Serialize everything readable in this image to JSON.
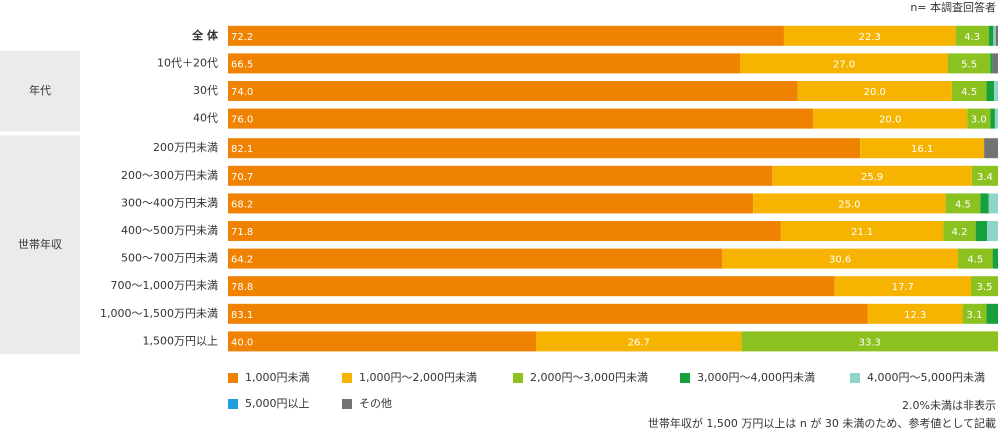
{
  "chart_data": {
    "type": "stacked-bar-horizontal",
    "note_top": "n= 本調査回答者",
    "notes": [
      "2.0%未満は非表示",
      "世帯年収が 1,500 万円以上は n が 30 未満のため、参考値として記載"
    ],
    "categories": [
      "全 体",
      "10代＋20代",
      "30代",
      "40代",
      "200万円未満",
      "200～300万円未満",
      "300～400万円未満",
      "400～500万円未満",
      "500～700万円未満",
      "700～1,000万円未満",
      "1,000～1,500万円未満",
      "1,500万円以上"
    ],
    "row_groups": [
      null,
      "年代",
      "年代",
      "年代",
      "世帯年収",
      "世帯年収",
      "世帯年収",
      "世帯年収",
      "世帯年収",
      "世帯年収",
      "世帯年収",
      "世帯年収"
    ],
    "xlim": [
      0,
      100
    ],
    "series": [
      {
        "name": "1,000円未満",
        "color": "#ef8200",
        "values": [
          72.2,
          66.5,
          74.0,
          76.0,
          82.1,
          70.7,
          68.2,
          71.8,
          64.2,
          78.8,
          83.1,
          40.0
        ],
        "value_labels": [
          "72.2",
          "66.5",
          "74.0",
          "76.0",
          "82.1",
          "70.7",
          "68.2",
          "71.8",
          "64.2",
          "78.8",
          "83.1",
          "40.0"
        ]
      },
      {
        "name": "1,000円～2,000円未満",
        "color": "#f6b400",
        "values": [
          22.3,
          27.0,
          20.0,
          20.0,
          16.1,
          25.9,
          25.0,
          21.1,
          30.6,
          17.7,
          12.3,
          26.7
        ],
        "value_labels": [
          "22.3",
          "27.0",
          "20.0",
          "20.0",
          "16.1",
          "25.9",
          "25.0",
          "21.1",
          "30.6",
          "17.7",
          "12.3",
          "26.7"
        ]
      },
      {
        "name": "2,000円～3,000円未満",
        "color": "#8cc21f",
        "values": [
          4.3,
          5.5,
          4.5,
          3.0,
          0,
          3.4,
          4.5,
          4.2,
          4.5,
          3.5,
          3.1,
          33.3
        ],
        "value_labels": [
          "4.3",
          "5.5",
          "4.5",
          "3.0",
          null,
          "3.4",
          "4.5",
          "4.2",
          "4.5",
          "3.5",
          "3.1",
          "33.3"
        ]
      },
      {
        "name": "3,000円～4,000円未満",
        "color": "#17a03b",
        "values": [
          0.6,
          0.3,
          1.0,
          0.6,
          0,
          0,
          1.1,
          1.5,
          0.7,
          0,
          1.5,
          0
        ],
        "value_labels": [
          null,
          null,
          null,
          null,
          null,
          null,
          null,
          null,
          null,
          null,
          null,
          null
        ]
      },
      {
        "name": "4,000円～5,000円未満",
        "color": "#8fd4c9",
        "values": [
          0.3,
          0,
          0.5,
          0.4,
          0,
          0,
          1.2,
          1.4,
          0,
          0,
          0,
          0
        ],
        "value_labels": [
          null,
          null,
          null,
          null,
          null,
          null,
          null,
          null,
          null,
          null,
          null,
          null
        ]
      },
      {
        "name": "5,000円以上",
        "color": "#1ea0dc",
        "values": [
          0,
          0,
          0,
          0,
          0,
          0,
          0,
          0,
          0,
          0,
          0,
          0
        ],
        "value_labels": [
          null,
          null,
          null,
          null,
          null,
          null,
          null,
          null,
          null,
          null,
          null,
          null
        ]
      },
      {
        "name": "その他",
        "color": "#737373",
        "values": [
          0.3,
          0.7,
          0,
          0,
          1.8,
          0,
          0,
          0,
          0,
          0,
          0,
          0
        ],
        "value_labels": [
          null,
          null,
          null,
          null,
          null,
          null,
          null,
          null,
          null,
          null,
          null,
          null
        ]
      }
    ]
  }
}
